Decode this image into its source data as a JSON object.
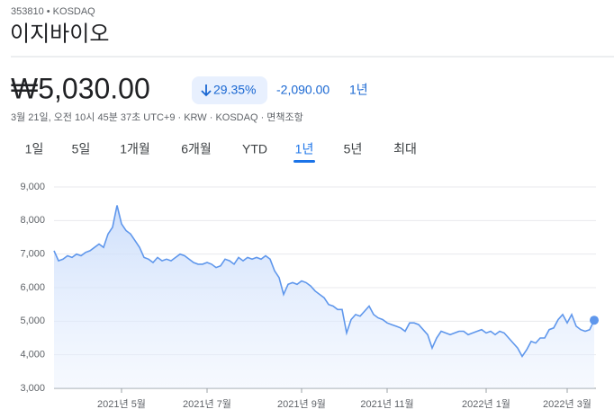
{
  "header": {
    "ticker": "353810 • KOSDAQ",
    "name": "이지바이오"
  },
  "quote": {
    "price": "₩5,030.00",
    "change_pct": "29.35%",
    "change": "-2,090.00",
    "period": "1년",
    "info": "3월 21일, 오전 10시 45분 37초 UTC+9 · KRW · KOSDAQ · 면책조항"
  },
  "tabs": [
    "1일",
    "5일",
    "1개월",
    "6개월",
    "YTD",
    "1년",
    "5년",
    "최대"
  ],
  "active_tab": 5,
  "chart_data": {
    "type": "area",
    "color": "#5f97ec",
    "grid": true,
    "ylim": [
      3000,
      9000
    ],
    "yticks": [
      {
        "value": 3000,
        "label": "3,000"
      },
      {
        "value": 4000,
        "label": "4,000"
      },
      {
        "value": 5000,
        "label": "5,000"
      },
      {
        "value": 6000,
        "label": "6,000"
      },
      {
        "value": 7000,
        "label": "7,000"
      },
      {
        "value": 8000,
        "label": "8,000"
      },
      {
        "value": 9000,
        "label": "9,000"
      }
    ],
    "categories": [
      null,
      null,
      null,
      null,
      null,
      null,
      null,
      null,
      null,
      null,
      null,
      null,
      null,
      null,
      null,
      "2021년 5월",
      null,
      null,
      null,
      null,
      null,
      null,
      null,
      null,
      null,
      null,
      null,
      null,
      null,
      null,
      null,
      null,
      null,
      null,
      "2021년 7월",
      null,
      null,
      null,
      null,
      null,
      null,
      null,
      null,
      null,
      null,
      null,
      null,
      null,
      null,
      null,
      null,
      null,
      null,
      null,
      null,
      "2021년 9월",
      null,
      null,
      null,
      null,
      null,
      null,
      null,
      null,
      null,
      null,
      null,
      null,
      null,
      null,
      null,
      null,
      null,
      null,
      "2021년 11월",
      null,
      null,
      null,
      null,
      null,
      null,
      null,
      null,
      null,
      null,
      null,
      null,
      null,
      null,
      null,
      null,
      null,
      null,
      null,
      null,
      null,
      "2022년 1월",
      null,
      null,
      null,
      null,
      null,
      null,
      null,
      null,
      null,
      null,
      null,
      null,
      null,
      null,
      null,
      null,
      null,
      "2022년 3월",
      null,
      null,
      null,
      null,
      null,
      null
    ],
    "values": [
      7100,
      6800,
      6850,
      6950,
      6900,
      7000,
      6950,
      7050,
      7100,
      7200,
      7300,
      7200,
      7600,
      7800,
      8450,
      7900,
      7700,
      7600,
      7400,
      7200,
      6900,
      6850,
      6750,
      6900,
      6800,
      6850,
      6800,
      6900,
      7000,
      6950,
      6850,
      6750,
      6700,
      6700,
      6750,
      6700,
      6600,
      6650,
      6850,
      6800,
      6700,
      6900,
      6800,
      6900,
      6850,
      6900,
      6850,
      6950,
      6850,
      6500,
      6300,
      5800,
      6100,
      6150,
      6100,
      6200,
      6150,
      6050,
      5900,
      5800,
      5700,
      5500,
      5450,
      5350,
      5350,
      4650,
      5050,
      5200,
      5150,
      5300,
      5450,
      5200,
      5100,
      5050,
      4950,
      4900,
      4850,
      4800,
      4700,
      4950,
      4950,
      4900,
      4750,
      4600,
      4200,
      4500,
      4700,
      4650,
      4600,
      4650,
      4700,
      4700,
      4600,
      4650,
      4700,
      4750,
      4650,
      4700,
      4600,
      4700,
      4650,
      4500,
      4350,
      4200,
      3950,
      4150,
      4400,
      4350,
      4500,
      4500,
      4750,
      4800,
      5050,
      5200,
      4950,
      5200,
      4850,
      4750,
      4700,
      4750,
      5030
    ]
  }
}
